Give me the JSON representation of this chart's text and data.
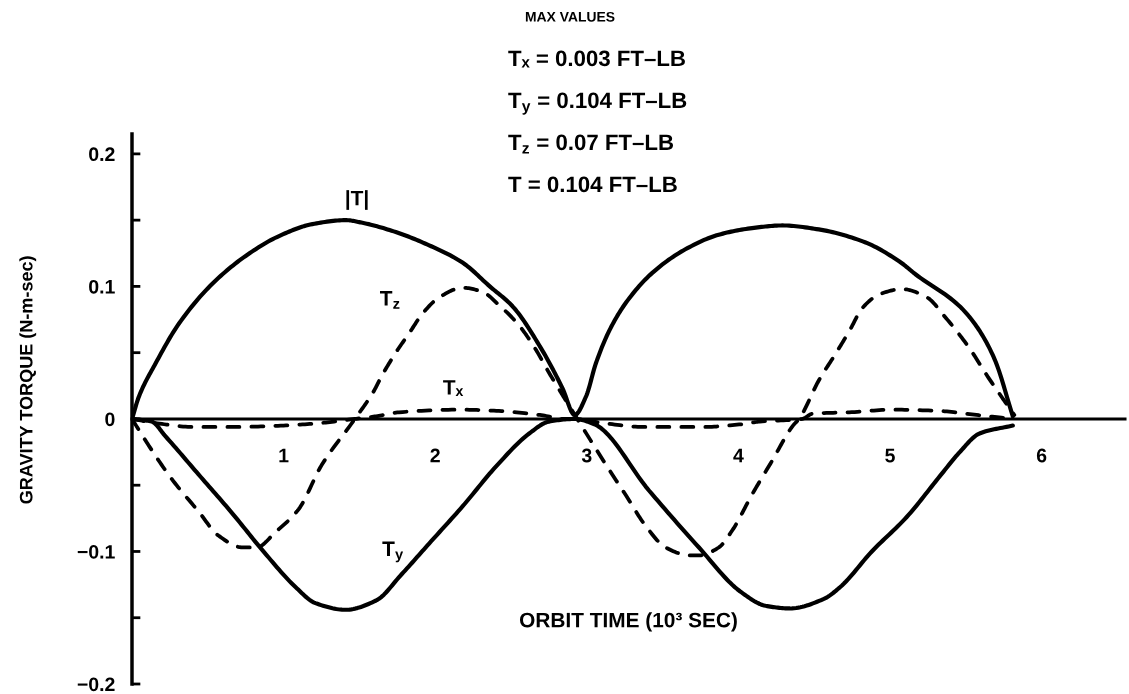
{
  "chart_data": {
    "type": "line",
    "title": "MAX VALUES",
    "annotations": [
      "Tₓ = 0.003 FT–LB",
      "T$_{y}$ = 0.104 FT–LB",
      "T$_{z}$ = 0.07 FT–LB",
      "T = 0.104 FT–LB"
    ],
    "xlabel": "ORBIT TIME (10³ SEC)",
    "ylabel": "GRAVITY TORQUE (N-m-sec)",
    "xlim": [
      0,
      6.55
    ],
    "xticks": [
      1,
      2,
      3,
      4,
      5,
      6
    ],
    "ylim": [
      -0.2,
      0.215
    ],
    "yticks": [
      {
        "value": -0.2,
        "label": "−0.2"
      },
      {
        "value": -0.15,
        "label": null
      },
      {
        "value": -0.1,
        "label": "−0.1"
      },
      {
        "value": -0.05,
        "label": null
      },
      0,
      {
        "value": 0.05,
        "label": null
      },
      0.1,
      {
        "value": 0.15,
        "label": null
      },
      0.2
    ],
    "grid": false,
    "legend": false,
    "marker": "none",
    "series": [
      {
        "name": "|T|",
        "color": "#000000",
        "line_style": "solid",
        "x": [
          0,
          0.046,
          0.156,
          0.31,
          0.53,
          0.75,
          0.97,
          1.19,
          1.41,
          1.52,
          1.74,
          1.96,
          2.18,
          2.36,
          2.51,
          2.71,
          2.84,
          2.92,
          2.995,
          3.06,
          3.15,
          3.26,
          3.43,
          3.65,
          3.87,
          4.09,
          4.29,
          4.53,
          4.82,
          5.06,
          5.17,
          5.45,
          5.57,
          5.69,
          5.81
        ],
        "values": [
          0,
          0.017,
          0.042,
          0.072,
          0.102,
          0.123,
          0.138,
          0.147,
          0.15,
          0.148,
          0.141,
          0.131,
          0.118,
          0.1,
          0.085,
          0.051,
          0.023,
          0.003,
          0.017,
          0.042,
          0.067,
          0.088,
          0.11,
          0.128,
          0.139,
          0.144,
          0.146,
          0.143,
          0.134,
          0.119,
          0.109,
          0.086,
          0.07,
          0.045,
          0.002
        ]
      },
      {
        "name": "T$_{z}$",
        "color": "#000000",
        "line_style": "dashed",
        "x": [
          0,
          0.11,
          0.26,
          0.44,
          0.57,
          0.73,
          0.82,
          0.95,
          1.1,
          1.25,
          1.47,
          1.59,
          1.65,
          1.74,
          1.83,
          1.92,
          2.03,
          2.18,
          2.31,
          2.42,
          2.55,
          2.66,
          2.75,
          2.84,
          2.91,
          3.14,
          3.26,
          3.39,
          3.52,
          3.68,
          3.74,
          3.87,
          3.96,
          4.09,
          4.22,
          4.36,
          4.4,
          4.53,
          4.64,
          4.73,
          4.82,
          4.93,
          5.08,
          5.24,
          5.37,
          5.52,
          5.65,
          5.74,
          5.82
        ],
        "values": [
          0,
          -0.02,
          -0.045,
          -0.07,
          -0.088,
          -0.097,
          -0.097,
          -0.085,
          -0.068,
          -0.035,
          0,
          0.02,
          0.033,
          0.05,
          0.065,
          0.08,
          0.092,
          0.099,
          0.096,
          0.086,
          0.071,
          0.053,
          0.035,
          0.018,
          0.005,
          -0.037,
          -0.058,
          -0.081,
          -0.097,
          -0.103,
          -0.103,
          -0.097,
          -0.084,
          -0.057,
          -0.032,
          -0.005,
          0,
          0.029,
          0.049,
          0.066,
          0.084,
          0.094,
          0.098,
          0.092,
          0.076,
          0.054,
          0.031,
          0.016,
          0.003
        ]
      },
      {
        "name": "Tₓ",
        "color": "#000000",
        "line_style": "dashed",
        "x": [
          0,
          0.15,
          0.4,
          0.7,
          1.0,
          1.25,
          1.47,
          1.61,
          1.76,
          2.16,
          2.42,
          2.69,
          2.86,
          2.92,
          3.1,
          3.37,
          3.78,
          4.02,
          4.14,
          4.42,
          4.49,
          4.73,
          5.02,
          5.33,
          5.57,
          5.81
        ],
        "values": [
          0,
          -0.003,
          -0.006,
          -0.006,
          -0.005,
          -0.003,
          0,
          0.002,
          0.005,
          0.007,
          0.006,
          0.003,
          0,
          0,
          -0.003,
          -0.006,
          -0.006,
          -0.004,
          -0.002,
          0,
          0.004,
          0.005,
          0.007,
          0.006,
          0.003,
          0
        ]
      },
      {
        "name": "T$_{y}$",
        "color": "#000000",
        "line_style": "solid",
        "x": [
          0,
          0.13,
          0.22,
          0.44,
          0.66,
          0.86,
          1.08,
          1.21,
          1.41,
          1.61,
          1.78,
          1.96,
          2.18,
          2.4,
          2.62,
          2.75,
          2.92,
          3.05,
          3.41,
          3.74,
          4.01,
          4.18,
          4.34,
          4.56,
          4.67,
          4.88,
          5.11,
          5.33,
          5.46,
          5.59,
          5.81
        ],
        "values": [
          0,
          -0.002,
          -0.013,
          -0.042,
          -0.071,
          -0.099,
          -0.127,
          -0.139,
          -0.144,
          -0.137,
          -0.117,
          -0.094,
          -0.066,
          -0.036,
          -0.011,
          -0.002,
          0,
          -0.004,
          -0.054,
          -0.097,
          -0.13,
          -0.141,
          -0.143,
          -0.136,
          -0.127,
          -0.1,
          -0.074,
          -0.043,
          -0.025,
          -0.011,
          -0.005
        ]
      }
    ]
  }
}
